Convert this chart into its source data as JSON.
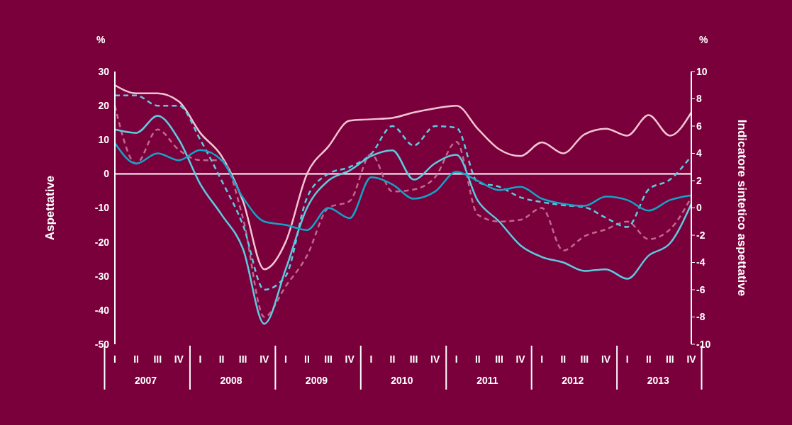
{
  "chart_data": {
    "type": "line",
    "ylabel": "Aspettative",
    "y2label": "Indicatore sintetico aspettative",
    "categories": [
      "I",
      "II",
      "III",
      "IV",
      "I",
      "II",
      "III",
      "IV",
      "I",
      "II",
      "III",
      "IV",
      "I",
      "II",
      "III",
      "IV",
      "I",
      "II",
      "III",
      "IV",
      "I",
      "II",
      "III",
      "IV",
      "I",
      "II",
      "III",
      "IV"
    ],
    "annotations": [
      "%",
      "%",
      "2007",
      "2008",
      "2009",
      "2010",
      "2011",
      "2012",
      "2013"
    ],
    "series": [
      {
        "color": "#f2c4d2",
        "axis": "y2",
        "line_style": "solid",
        "values": [
          9,
          8.4,
          8.4,
          7.8,
          5.5,
          3.8,
          0.5,
          -4.5,
          -2.5,
          2.5,
          4.5,
          6.4,
          6.5,
          6.6,
          7,
          7.3,
          7.5,
          5.8,
          4.3,
          3.8,
          4.8,
          4,
          5.4,
          5.8,
          5.3,
          6.8,
          5.3,
          7
        ]
      },
      {
        "color": "#c0688e",
        "line_style": "dashed",
        "values": [
          20,
          3,
          13,
          7,
          4,
          4,
          -13,
          -42,
          -33,
          -24,
          -10,
          -8,
          5.8,
          -5.2,
          -4.6,
          -1,
          9.4,
          -12,
          -14,
          -13.5,
          -10,
          -22.5,
          -18.3,
          -16.3,
          -14,
          -19.2,
          -16.3,
          -6.9
        ]
      },
      {
        "color": "#5ccbdf",
        "line_style": "dashed",
        "values": [
          23,
          23,
          20,
          20,
          10,
          -2,
          -15,
          -34,
          -30,
          -7,
          0,
          2,
          5.8,
          14,
          8.3,
          14,
          13.5,
          -2.5,
          -3.8,
          -6.9,
          -8.3,
          -9.2,
          -9.8,
          -12.9,
          -15.6,
          -4.6,
          -1.7,
          5.2
        ]
      },
      {
        "color": "#5ccbdf",
        "line_style": "solid",
        "values": [
          13,
          12,
          17,
          10,
          -3,
          -12,
          -22,
          -44,
          -28,
          -10,
          -2,
          1,
          5.2,
          6.9,
          -1.7,
          3.1,
          5.6,
          -7.9,
          -14,
          -21,
          -24.4,
          -26,
          -28.5,
          -28,
          -30.8,
          -24,
          -20.4,
          -8.8
        ]
      },
      {
        "color": "#10a5c6",
        "line_style": "solid",
        "values": [
          9,
          3,
          6,
          4,
          7,
          4,
          -7,
          -14,
          -15,
          -16.5,
          -10,
          -13,
          -1,
          -3.1,
          -7.3,
          -5.2,
          0.6,
          -2.1,
          -4.8,
          -3.8,
          -7.3,
          -8.8,
          -9.4,
          -6.7,
          -7.7,
          -10.8,
          -7.7,
          -6.3
        ]
      }
    ],
    "ylim": [
      -50,
      30
    ],
    "yticks": [
      -50,
      -40,
      -30,
      -20,
      -10,
      0,
      10,
      20,
      30
    ],
    "y2lim": [
      -10,
      10
    ],
    "y2ticks": [
      -10,
      -8,
      -6,
      -4,
      -2,
      0,
      2,
      4,
      6,
      8,
      10
    ],
    "ref_lines": [
      {
        "axis": "y",
        "value": 0,
        "color": "#ffffff"
      }
    ],
    "grid": false,
    "legend": false,
    "marker": "none"
  }
}
